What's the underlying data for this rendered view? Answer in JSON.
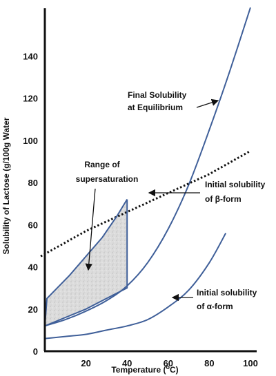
{
  "chart_data": {
    "type": "line",
    "xlabel": "Temperature (°C)",
    "ylabel": "Solubility of Lactose (g/100g Water",
    "xlim": [
      0,
      100
    ],
    "ylim": [
      0,
      160
    ],
    "x_ticks": [
      20,
      40,
      60,
      80,
      100
    ],
    "y_ticks": [
      0,
      20,
      40,
      60,
      80,
      100,
      120,
      140
    ],
    "grid": false,
    "colors": {
      "curve": "#3f5f99",
      "shade": "#d8d8d8",
      "axis": "#111111",
      "dotted": "#111111"
    },
    "series": [
      {
        "key": "final",
        "style": "solid",
        "x": [
          0,
          10,
          20,
          30,
          40,
          50,
          60,
          70,
          80,
          90,
          100
        ],
        "y": [
          12,
          15,
          19,
          24,
          31,
          42,
          58,
          79,
          105,
          133,
          163
        ]
      },
      {
        "key": "alpha",
        "style": "solid",
        "x": [
          0,
          10,
          20,
          30,
          40,
          50,
          60,
          70,
          80,
          88
        ],
        "y": [
          6,
          7,
          8,
          10,
          12,
          15,
          21,
          29,
          42,
          56
        ]
      },
      {
        "key": "beta",
        "style": "dotted",
        "x": [
          -2,
          20,
          40,
          60,
          80,
          100
        ],
        "y": [
          45,
          57,
          66,
          75,
          84,
          95
        ]
      },
      {
        "key": "supersat_upper",
        "style": "solid",
        "x": [
          0,
          1,
          12,
          28,
          35,
          40
        ],
        "y": [
          12,
          25,
          36,
          54,
          64,
          72
        ]
      },
      {
        "key": "supersat_lower",
        "style": "solid",
        "x": [
          0,
          10,
          20,
          30,
          40,
          40
        ],
        "y": [
          12,
          16,
          20,
          25,
          30,
          72
        ]
      }
    ],
    "annotations": [
      {
        "id": "final",
        "lines": [
          "Final Solubility",
          "at Equilibrium"
        ]
      },
      {
        "id": "beta",
        "lines": [
          "Initial solubility",
          "of β-form"
        ]
      },
      {
        "id": "alpha",
        "lines": [
          "Initial solubility",
          "of α-form"
        ]
      },
      {
        "id": "range",
        "lines": [
          "Range of",
          "supersaturation"
        ]
      }
    ]
  }
}
